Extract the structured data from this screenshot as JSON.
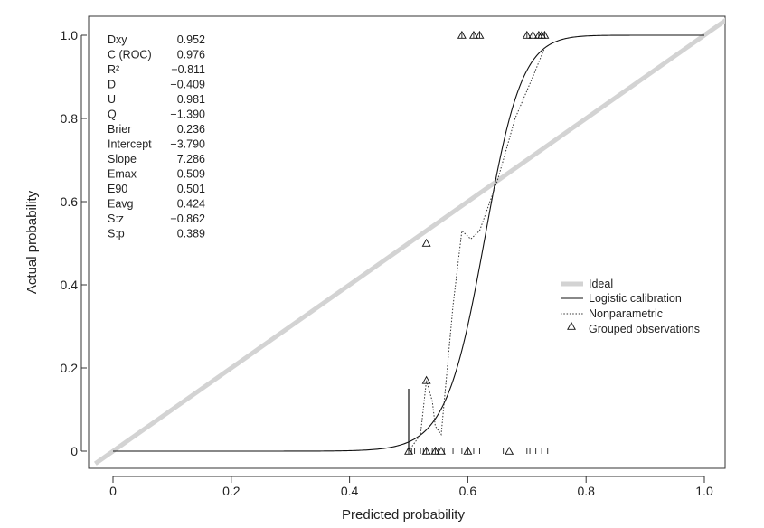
{
  "chart_data": {
    "type": "line",
    "xlabel": "Predicted probability",
    "ylabel": "Actual probability",
    "xlim": [
      -0.03,
      1.04
    ],
    "ylim": [
      -0.04,
      1.04
    ],
    "x_ticks": [
      0,
      0.2,
      0.4,
      0.6,
      0.8,
      1.0
    ],
    "x_tick_labels": [
      "0",
      "0.2",
      "0.4",
      "0.6",
      "0.8",
      "1.0"
    ],
    "y_ticks": [
      0,
      0.2,
      0.4,
      0.6,
      0.8,
      1.0
    ],
    "y_tick_labels": [
      "0",
      "0.2",
      "0.4",
      "0.6",
      "0.8",
      "1.0"
    ],
    "grid": false,
    "legend_position": "right",
    "stats": [
      {
        "label": "Dxy",
        "value": "0.952"
      },
      {
        "label": "C (ROC)",
        "value": "0.976"
      },
      {
        "label": "R²",
        "value": "−0.811"
      },
      {
        "label": "D",
        "value": "−0.409"
      },
      {
        "label": "U",
        "value": "0.981"
      },
      {
        "label": "Q",
        "value": "−1.390"
      },
      {
        "label": "Brier",
        "value": "0.236"
      },
      {
        "label": "Intercept",
        "value": "−3.790"
      },
      {
        "label": "Slope",
        "value": "7.286"
      },
      {
        "label": "Emax",
        "value": "0.509"
      },
      {
        "label": "E90",
        "value": "0.501"
      },
      {
        "label": "Eavg",
        "value": "0.424"
      },
      {
        "label": "S:z",
        "value": "−0.862"
      },
      {
        "label": "S:p",
        "value": "0.389"
      }
    ],
    "series": [
      {
        "name": "Ideal",
        "style": "ideal",
        "color": "#d3d3d3",
        "x": [
          -0.03,
          1.04
        ],
        "y": [
          -0.03,
          1.04
        ]
      },
      {
        "name": "Logistic calibration",
        "style": "logistic",
        "color": "#111111",
        "intercept": -3.79,
        "slope": 7.286,
        "x_range": [
          0,
          1.0
        ]
      },
      {
        "name": "Nonparametric",
        "style": "dotted",
        "color": "#333333",
        "x": [
          0.5,
          0.52,
          0.53,
          0.54,
          0.545,
          0.555,
          0.575,
          0.59,
          0.605,
          0.62,
          0.65,
          0.68,
          0.71,
          0.73
        ],
        "y": [
          0.0,
          0.04,
          0.17,
          0.12,
          0.06,
          0.04,
          0.35,
          0.53,
          0.51,
          0.53,
          0.65,
          0.8,
          0.9,
          0.97
        ]
      },
      {
        "name": "Grouped observations",
        "style": "triangles",
        "color": "#111111",
        "x": [
          0.5,
          0.53,
          0.53,
          0.545,
          0.555,
          0.6,
          0.53,
          0.59,
          0.61,
          0.62,
          0.7,
          0.71,
          0.72,
          0.725,
          0.73,
          0.67
        ],
        "y": [
          0.0,
          0.0,
          0.17,
          0.0,
          0.0,
          0.0,
          0.5,
          1.0,
          1.0,
          1.0,
          1.0,
          1.0,
          1.0,
          1.0,
          1.0,
          0.0
        ]
      }
    ],
    "rug_bottom": [
      0.5,
      0.505,
      0.51,
      0.52,
      0.525,
      0.53,
      0.54,
      0.545,
      0.55,
      0.56,
      0.575,
      0.59,
      0.6,
      0.61,
      0.62,
      0.66,
      0.7,
      0.705,
      0.715,
      0.725,
      0.735
    ],
    "rug_top": [
      0.59,
      0.61,
      0.62,
      0.7,
      0.71,
      0.72,
      0.725,
      0.73
    ],
    "spike_x": 0.5,
    "spike_height": 0.15
  }
}
